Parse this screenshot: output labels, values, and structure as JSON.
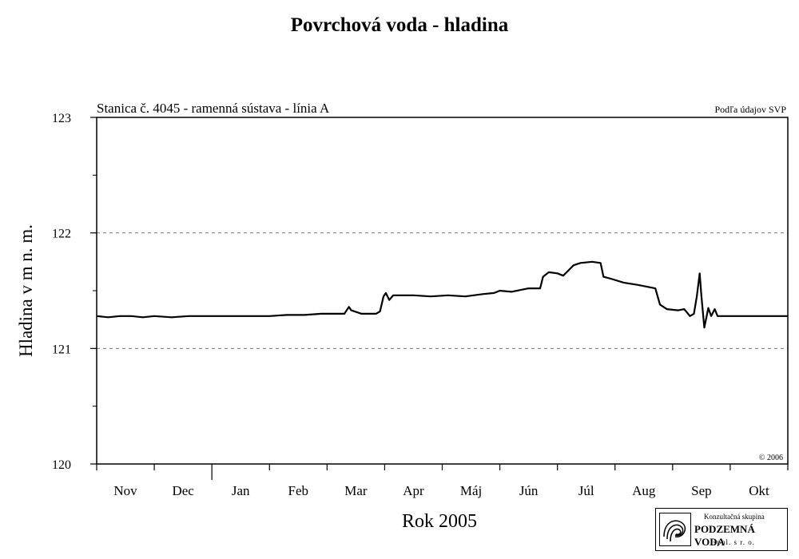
{
  "page": {
    "title": "Povrchová voda - hladina"
  },
  "chart_data": {
    "type": "line",
    "subtitle": "Stanica č. 4045 - ramenná sústava - línia A",
    "source_note": "Podľa údajov SVP",
    "copyright": "© 2006",
    "xlabel": "Rok 2005",
    "ylabel": "Hladina v m n. m.",
    "ylim": [
      120,
      123
    ],
    "yticks": [
      120,
      121,
      122,
      123
    ],
    "grid_y": [
      121,
      122
    ],
    "categories": [
      "Nov",
      "Dec",
      "Jan",
      "Feb",
      "Mar",
      "Apr",
      "Máj",
      "Jún",
      "Júl",
      "Aug",
      "Sep",
      "Okt"
    ],
    "xlim_months": [
      0,
      12
    ],
    "series": [
      {
        "values": [
          [
            0.0,
            121.28
          ],
          [
            0.2,
            121.27
          ],
          [
            0.4,
            121.28
          ],
          [
            0.6,
            121.28
          ],
          [
            0.8,
            121.27
          ],
          [
            1.0,
            121.28
          ],
          [
            1.3,
            121.27
          ],
          [
            1.6,
            121.28
          ],
          [
            2.0,
            121.28
          ],
          [
            2.3,
            121.28
          ],
          [
            2.6,
            121.28
          ],
          [
            3.0,
            121.28
          ],
          [
            3.3,
            121.29
          ],
          [
            3.6,
            121.29
          ],
          [
            3.9,
            121.3
          ],
          [
            4.1,
            121.3
          ],
          [
            4.3,
            121.3
          ],
          [
            4.38,
            121.36
          ],
          [
            4.42,
            121.33
          ],
          [
            4.6,
            121.3
          ],
          [
            4.85,
            121.3
          ],
          [
            4.92,
            121.32
          ],
          [
            4.98,
            121.45
          ],
          [
            5.02,
            121.48
          ],
          [
            5.08,
            121.42
          ],
          [
            5.15,
            121.46
          ],
          [
            5.3,
            121.46
          ],
          [
            5.5,
            121.46
          ],
          [
            5.8,
            121.45
          ],
          [
            6.1,
            121.46
          ],
          [
            6.4,
            121.45
          ],
          [
            6.7,
            121.47
          ],
          [
            6.9,
            121.48
          ],
          [
            7.0,
            121.5
          ],
          [
            7.2,
            121.49
          ],
          [
            7.5,
            121.52
          ],
          [
            7.6,
            121.52
          ],
          [
            7.7,
            121.52
          ],
          [
            7.75,
            121.62
          ],
          [
            7.85,
            121.66
          ],
          [
            8.0,
            121.65
          ],
          [
            8.1,
            121.63
          ],
          [
            8.2,
            121.68
          ],
          [
            8.28,
            121.72
          ],
          [
            8.4,
            121.74
          ],
          [
            8.6,
            121.75
          ],
          [
            8.75,
            121.74
          ],
          [
            8.8,
            121.62
          ],
          [
            8.95,
            121.6
          ],
          [
            9.15,
            121.57
          ],
          [
            9.4,
            121.55
          ],
          [
            9.6,
            121.53
          ],
          [
            9.7,
            121.52
          ],
          [
            9.78,
            121.38
          ],
          [
            9.9,
            121.34
          ],
          [
            10.1,
            121.33
          ],
          [
            10.2,
            121.34
          ],
          [
            10.3,
            121.28
          ],
          [
            10.37,
            121.3
          ],
          [
            10.42,
            121.45
          ],
          [
            10.47,
            121.65
          ],
          [
            10.5,
            121.45
          ],
          [
            10.55,
            121.18
          ],
          [
            10.62,
            121.35
          ],
          [
            10.67,
            121.28
          ],
          [
            10.73,
            121.34
          ],
          [
            10.78,
            121.28
          ],
          [
            11.0,
            121.28
          ],
          [
            11.2,
            121.28
          ],
          [
            11.5,
            121.28
          ],
          [
            11.8,
            121.28
          ],
          [
            12.0,
            121.28
          ]
        ]
      }
    ]
  },
  "logo": {
    "line1": "Konzultačná skupina",
    "line2": "PODZEMNÁ VODA",
    "line3": "spol. s r. o."
  }
}
